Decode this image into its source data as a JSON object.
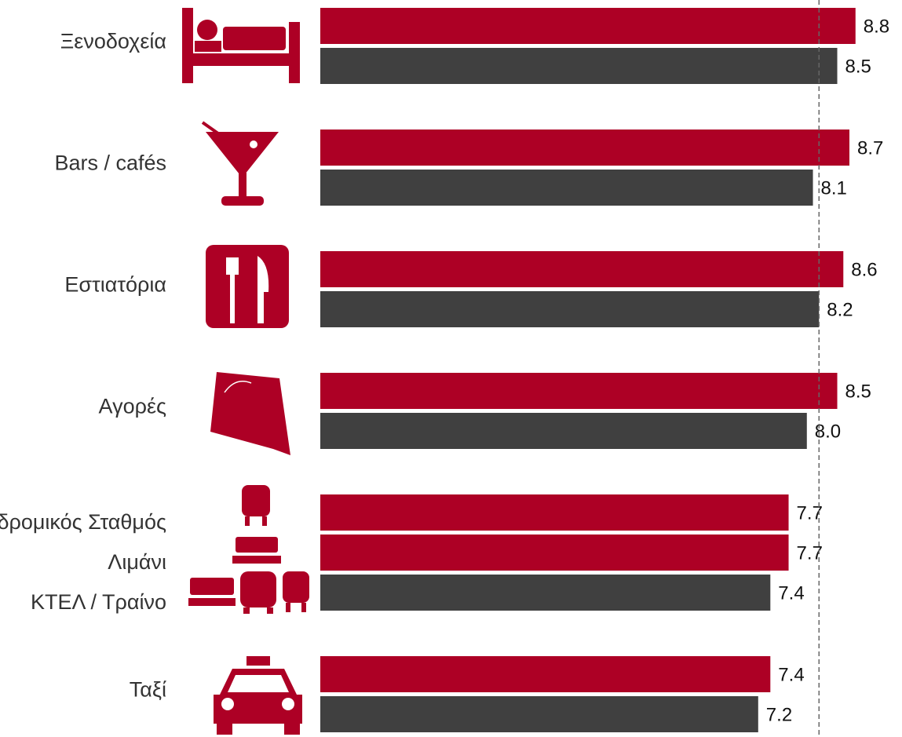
{
  "chart_data": {
    "type": "bar",
    "xlim": [
      0,
      9.5
    ],
    "reference_line": 8.2,
    "groups": [
      {
        "labels": [
          "Ξενοδοχεία"
        ],
        "values": [
          8.8,
          8.5
        ],
        "value_labels": [
          "8.8",
          "8.5"
        ],
        "colors": [
          "#ad0025",
          "#404040"
        ]
      },
      {
        "labels": [
          "Bars / cafés"
        ],
        "values": [
          8.7,
          8.1
        ],
        "value_labels": [
          "8.7",
          "8.1"
        ],
        "colors": [
          "#ad0025",
          "#404040"
        ]
      },
      {
        "labels": [
          "Εστιατόρια"
        ],
        "values": [
          8.6,
          8.2
        ],
        "value_labels": [
          "8.6",
          "8.2"
        ],
        "colors": [
          "#ad0025",
          "#404040"
        ]
      },
      {
        "labels": [
          "Αγορές"
        ],
        "values": [
          8.5,
          8.0
        ],
        "value_labels": [
          "8.5",
          "8.0"
        ],
        "colors": [
          "#ad0025",
          "#404040"
        ]
      },
      {
        "labels": [
          "Σιδηροδρομικός Σταθμός",
          "Λιμάνι",
          "ΚΤΕΛ / Τραίνο"
        ],
        "values": [
          7.7,
          7.7,
          7.4
        ],
        "value_labels": [
          "7.7",
          "7.7",
          "7.4"
        ],
        "colors": [
          "#ad0025",
          "#ad0025",
          "#404040"
        ]
      },
      {
        "labels": [
          "Ταξί"
        ],
        "values": [
          7.4,
          7.2
        ],
        "value_labels": [
          "7.4",
          "7.2"
        ],
        "colors": [
          "#ad0025",
          "#404040"
        ]
      }
    ]
  }
}
